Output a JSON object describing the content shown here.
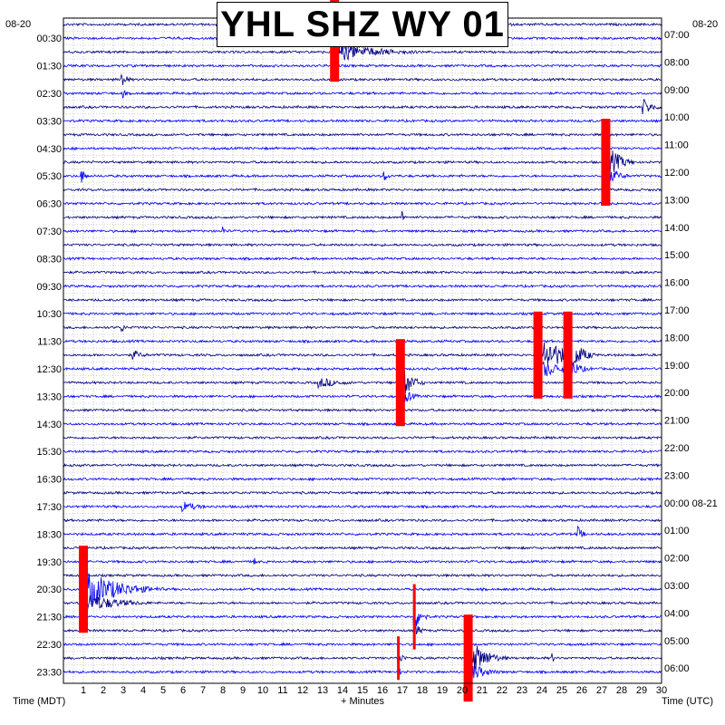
{
  "chart_data": {
    "type": "line",
    "title": "YHL SHZ WY 01",
    "left_date": "08-20",
    "right_date": "08-20",
    "xlabel": "+ Minutes",
    "left_axis_label": "Time (MDT)",
    "right_axis_label": "Time (UTC)",
    "x_ticks": [
      1,
      2,
      3,
      4,
      5,
      6,
      7,
      8,
      9,
      10,
      11,
      12,
      13,
      14,
      15,
      16,
      17,
      18,
      19,
      20,
      21,
      22,
      23,
      24,
      25,
      26,
      27,
      28,
      29,
      30
    ],
    "xlim": [
      0,
      30
    ],
    "left_ticks": [
      "00:30",
      "01:30",
      "02:30",
      "03:30",
      "04:30",
      "05:30",
      "06:30",
      "07:30",
      "08:30",
      "09:30",
      "10:30",
      "11:30",
      "12:30",
      "13:30",
      "14:30",
      "15:30",
      "16:30",
      "17:30",
      "18:30",
      "19:30",
      "20:30",
      "21:30",
      "22:30",
      "23:30"
    ],
    "right_ticks": [
      "07:00",
      "08:00",
      "09:00",
      "10:00",
      "11:00",
      "12:00",
      "13:00",
      "14:00",
      "15:00",
      "16:00",
      "17:00",
      "18:00",
      "19:00",
      "20:00",
      "21:00",
      "22:00",
      "23:00",
      "00:00 08-21",
      "01:00",
      "02:00",
      "03:00",
      "04:00",
      "05:00",
      "06:00"
    ],
    "trace_colors": [
      "#000080",
      "#0000ff"
    ],
    "clip_color": "#ff0000",
    "grid": true,
    "events": [
      {
        "minute": 13.6,
        "trace": 1,
        "amplitude": 4,
        "clipped": true,
        "duration": 5
      },
      {
        "minute": 2.9,
        "trace": 4,
        "amplitude": 2,
        "clipped": false,
        "duration": 0.6
      },
      {
        "minute": 3.0,
        "trace": 5,
        "amplitude": 1,
        "clipped": false,
        "duration": 0.3
      },
      {
        "minute": 29.0,
        "trace": 6,
        "amplitude": 2,
        "clipped": false,
        "duration": 1.2
      },
      {
        "minute": 27.2,
        "trace": 10,
        "amplitude": 4,
        "clipped": true,
        "duration": 1.5
      },
      {
        "minute": 0.9,
        "trace": 11,
        "amplitude": 1.5,
        "clipped": false,
        "duration": 0.5
      },
      {
        "minute": 16.1,
        "trace": 11,
        "amplitude": 1,
        "clipped": false,
        "duration": 0.6
      },
      {
        "minute": 17.0,
        "trace": 14,
        "amplitude": 1,
        "clipped": false,
        "duration": 0.3
      },
      {
        "minute": 8.0,
        "trace": 15,
        "amplitude": 1,
        "clipped": false,
        "duration": 0.3
      },
      {
        "minute": 2.9,
        "trace": 22,
        "amplitude": 1,
        "clipped": false,
        "duration": 0.5
      },
      {
        "minute": 3.5,
        "trace": 24,
        "amplitude": 1,
        "clipped": false,
        "duration": 1.2
      },
      {
        "minute": 23.8,
        "trace": 24,
        "amplitude": 4,
        "clipped": true,
        "duration": 3
      },
      {
        "minute": 25.3,
        "trace": 24,
        "amplitude": 4,
        "clipped": true,
        "duration": 1.5
      },
      {
        "minute": 16.9,
        "trace": 26,
        "amplitude": 4,
        "clipped": true,
        "duration": 1.2
      },
      {
        "minute": 12.8,
        "trace": 26,
        "amplitude": 1,
        "clipped": false,
        "duration": 3
      },
      {
        "minute": 25.8,
        "trace": 37,
        "amplitude": 1.5,
        "clipped": false,
        "duration": 0.6
      },
      {
        "minute": 6.0,
        "trace": 35,
        "amplitude": 1,
        "clipped": false,
        "duration": 2
      },
      {
        "minute": 9.6,
        "trace": 39,
        "amplitude": 1,
        "clipped": false,
        "duration": 0.3
      },
      {
        "minute": 1.0,
        "trace": 41,
        "amplitude": 4,
        "clipped": true,
        "duration": 4
      },
      {
        "minute": 17.6,
        "trace": 43,
        "amplitude": 3,
        "clipped": true,
        "duration": 0.8
      },
      {
        "minute": 16.8,
        "trace": 46,
        "amplitude": 2,
        "clipped": true,
        "duration": 0.5
      },
      {
        "minute": 20.3,
        "trace": 46,
        "amplitude": 4,
        "clipped": true,
        "duration": 2
      },
      {
        "minute": 24.5,
        "trace": 46,
        "amplitude": 1,
        "clipped": false,
        "duration": 0.3
      }
    ]
  }
}
